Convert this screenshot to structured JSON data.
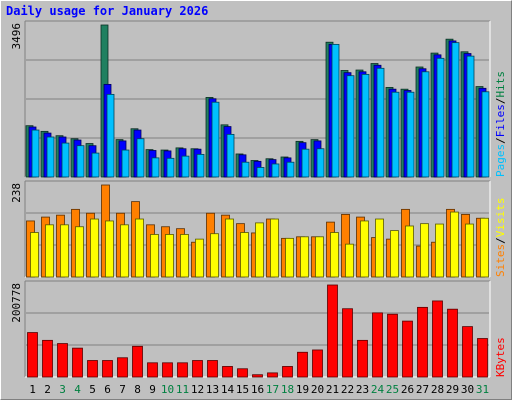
{
  "chart_data": {
    "type": "bar",
    "title": "Daily usage for January 2026",
    "days": [
      {
        "label": "1",
        "weekend": false
      },
      {
        "label": "2",
        "weekend": false
      },
      {
        "label": "3",
        "weekend": true
      },
      {
        "label": "4",
        "weekend": true
      },
      {
        "label": "5",
        "weekend": false
      },
      {
        "label": "6",
        "weekend": false
      },
      {
        "label": "7",
        "weekend": false
      },
      {
        "label": "8",
        "weekend": false
      },
      {
        "label": "9",
        "weekend": false
      },
      {
        "label": "10",
        "weekend": true
      },
      {
        "label": "11",
        "weekend": true
      },
      {
        "label": "12",
        "weekend": false
      },
      {
        "label": "13",
        "weekend": false
      },
      {
        "label": "14",
        "weekend": false
      },
      {
        "label": "15",
        "weekend": false
      },
      {
        "label": "16",
        "weekend": false
      },
      {
        "label": "17",
        "weekend": true
      },
      {
        "label": "18",
        "weekend": true
      },
      {
        "label": "19",
        "weekend": false
      },
      {
        "label": "20",
        "weekend": false
      },
      {
        "label": "21",
        "weekend": false
      },
      {
        "label": "22",
        "weekend": false
      },
      {
        "label": "23",
        "weekend": false
      },
      {
        "label": "24",
        "weekend": true
      },
      {
        "label": "25",
        "weekend": true
      },
      {
        "label": "26",
        "weekend": false
      },
      {
        "label": "27",
        "weekend": false
      },
      {
        "label": "28",
        "weekend": false
      },
      {
        "label": "29",
        "weekend": false
      },
      {
        "label": "30",
        "weekend": false
      },
      {
        "label": "31",
        "weekend": true
      }
    ],
    "panels": [
      {
        "id": "hits-files-pages",
        "max_label": "3496",
        "ylim": [
          0,
          3496
        ],
        "legend": [
          {
            "text": "Pages",
            "color": "#00c0ff"
          },
          {
            "text": "/",
            "color": "#000000"
          },
          {
            "text": "Files",
            "color": "#0000ff"
          },
          {
            "text": "/",
            "color": "#000000"
          },
          {
            "text": "Hits",
            "color": "#008040"
          }
        ],
        "series": [
          {
            "name": "Hits",
            "color": "#208060",
            "values": [
              1180,
              1050,
              950,
              880,
              770,
              3496,
              860,
              1110,
              630,
              620,
              670,
              650,
              1830,
              1200,
              530,
              380,
              420,
              460,
              820,
              860,
              3100,
              2450,
              2460,
              2610,
              2060,
              2020,
              2530,
              2850,
              3170,
              2880,
              2080
            ]
          },
          {
            "name": "Files",
            "color": "#0000ff",
            "values": [
              1150,
              1010,
              920,
              850,
              720,
              2130,
              830,
              1080,
              610,
              600,
              650,
              640,
              1800,
              1160,
              510,
              360,
              400,
              440,
              790,
              830,
              3050,
              2400,
              2420,
              2570,
              2020,
              1990,
              2490,
              2810,
              3130,
              2840,
              2040
            ]
          },
          {
            "name": "Pages",
            "color": "#00c0ff",
            "values": [
              1080,
              920,
              780,
              720,
              550,
              1900,
              620,
              880,
              440,
              430,
              480,
              520,
              1720,
              980,
              340,
              220,
              300,
              340,
              640,
              650,
              3050,
              2330,
              2360,
              2500,
              1950,
              1950,
              2420,
              2730,
              3090,
              2780,
              1960
            ]
          }
        ]
      },
      {
        "id": "visits-sites",
        "max_label": "238",
        "ylim": [
          0,
          238
        ],
        "legend": [
          {
            "text": "Sites",
            "color": "#ff8000"
          },
          {
            "text": "/",
            "color": "#000000"
          },
          {
            "text": "Visits",
            "color": "#ffff00"
          }
        ],
        "series": [
          {
            "name": "Visits",
            "color": "#ff8000",
            "values": [
              145,
              155,
              160,
              175,
              165,
              238,
              165,
              195,
              135,
              130,
              125,
              90,
              165,
              160,
              138,
              114,
              150,
              100,
              104,
              104,
              142,
              162,
              155,
              102,
              98,
              175,
              80,
              90,
              175,
              162,
              152
            ]
          },
          {
            "name": "Sites",
            "color": "#ffff00",
            "values": [
              115,
              135,
              135,
              130,
              150,
              145,
              135,
              150,
              110,
              110,
              110,
              98,
              112,
              150,
              115,
              140,
              150,
              100,
              104,
              104,
              115,
              85,
              145,
              150,
              120,
              132,
              138,
              137,
              168,
              137,
              152
            ]
          }
        ]
      },
      {
        "id": "kbytes",
        "max_label": "200778",
        "ylim": [
          0,
          200778
        ],
        "legend": [
          {
            "text": "KBytes",
            "color": "#ff0000"
          }
        ],
        "series": [
          {
            "name": "KBytes",
            "color": "#ff0000",
            "values": [
              97000,
              80000,
              73000,
              63000,
              36000,
              36000,
              42000,
              67000,
              31000,
              31000,
              31000,
              36000,
              36000,
              23000,
              18000,
              5000,
              9000,
              23000,
              54000,
              59000,
              200778,
              149000,
              80000,
              140000,
              137000,
              122000,
              152000,
              166000,
              148000,
              110000,
              84000
            ]
          }
        ]
      }
    ]
  }
}
